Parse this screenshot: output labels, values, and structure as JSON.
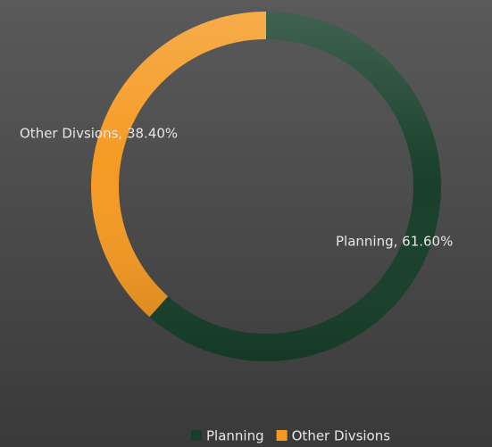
{
  "chart_data": {
    "type": "donut",
    "categories": [
      "Planning",
      "Other Divsions"
    ],
    "values": [
      61.6,
      38.4
    ],
    "value_labels": [
      "Planning, 61.60%",
      "Other Divsions, 38.40%"
    ],
    "colors": [
      "#173f2a",
      "#f59a23"
    ],
    "legend": "bottom"
  }
}
